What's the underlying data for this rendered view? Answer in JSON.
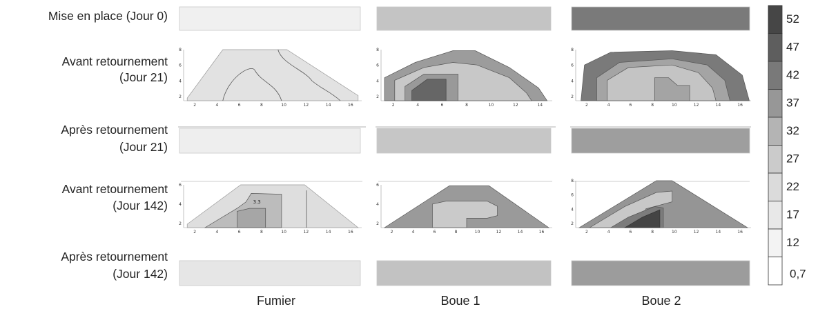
{
  "chart_data": {
    "type": "heatmap",
    "rows": [
      {
        "label_lines": [
          "Mise en place (Jour 0)"
        ]
      },
      {
        "label_lines": [
          "Avant retournement",
          "(Jour 21)"
        ]
      },
      {
        "label_lines": [
          "Après retournement",
          "(Jour 21)"
        ]
      },
      {
        "label_lines": [
          "Avant retournement",
          "(Jour 142)"
        ]
      },
      {
        "label_lines": [
          "Après retournement",
          "(Jour 142)"
        ]
      }
    ],
    "columns": [
      "Fumier",
      "Boue 1",
      "Boue 2"
    ],
    "legend": {
      "ticks": [
        "52",
        "47",
        "42",
        "37",
        "32",
        "27",
        "22",
        "17",
        "12",
        "0,7"
      ],
      "colors": [
        "#464646",
        "#5e5e5e",
        "#797979",
        "#979797",
        "#b4b4b4",
        "#cbcbcb",
        "#dbdbdb",
        "#e8e8e8",
        "#f3f3f3",
        "#ffffff"
      ]
    },
    "uniform_panels": [
      {
        "row": 0,
        "col": 0,
        "color": "#f0f0f0"
      },
      {
        "row": 0,
        "col": 1,
        "color": "#c4c4c4"
      },
      {
        "row": 0,
        "col": 2,
        "color": "#7a7a7a"
      },
      {
        "row": 2,
        "col": 0,
        "color": "#eeeeee"
      },
      {
        "row": 2,
        "col": 1,
        "color": "#c6c6c6"
      },
      {
        "row": 2,
        "col": 2,
        "color": "#9e9e9e"
      },
      {
        "row": 4,
        "col": 0,
        "color": "#e6e6e6"
      },
      {
        "row": 4,
        "col": 1,
        "color": "#c2c2c2"
      },
      {
        "row": 4,
        "col": 2,
        "color": "#9c9c9c"
      }
    ],
    "profile_panels": [
      {
        "row": 1,
        "col": 0,
        "x_ticks": [
          "2",
          "4",
          "6",
          "8",
          "10",
          "12",
          "14",
          "16"
        ],
        "y_ticks": [
          "2",
          "4",
          "6",
          "8"
        ]
      },
      {
        "row": 1,
        "col": 1,
        "x_ticks": [
          "2",
          "4",
          "6",
          "8",
          "10",
          "12",
          "14"
        ],
        "y_ticks": [
          "2",
          "4",
          "6",
          "8"
        ]
      },
      {
        "row": 1,
        "col": 2,
        "x_ticks": [
          "2",
          "4",
          "6",
          "8",
          "10",
          "12",
          "14",
          "16"
        ],
        "y_ticks": [
          "2",
          "4",
          "6",
          "8"
        ]
      },
      {
        "row": 3,
        "col": 0,
        "x_ticks": [
          "2",
          "4",
          "6",
          "8",
          "10",
          "12",
          "14",
          "16"
        ],
        "y_ticks": [
          "2",
          "4",
          "6"
        ],
        "annotation": "3.3"
      },
      {
        "row": 3,
        "col": 1,
        "x_ticks": [
          "2",
          "4",
          "6",
          "8",
          "10",
          "12",
          "14",
          "16"
        ],
        "y_ticks": [
          "2",
          "4",
          "6"
        ]
      },
      {
        "row": 3,
        "col": 2,
        "x_ticks": [
          "2",
          "4",
          "6",
          "8",
          "10",
          "12",
          "14",
          "16"
        ],
        "y_ticks": [
          "2",
          "4",
          "6",
          "8"
        ]
      }
    ]
  }
}
